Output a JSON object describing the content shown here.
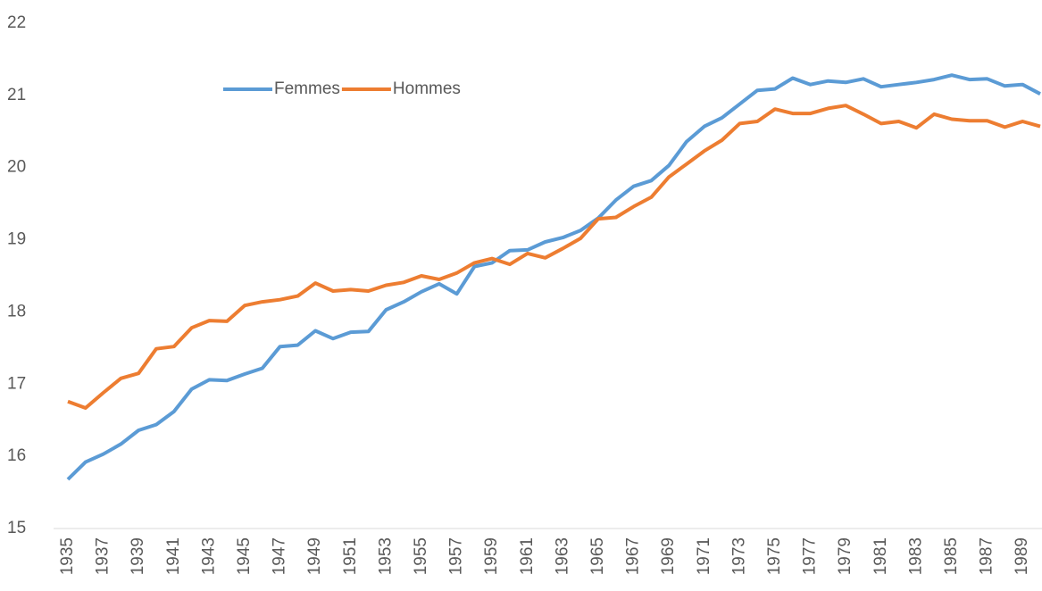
{
  "chart_data": {
    "type": "line",
    "categories": [
      "1935",
      null,
      "1937",
      null,
      "1939",
      null,
      "1941",
      null,
      "1943",
      null,
      "1945",
      null,
      "1947",
      null,
      "1949",
      null,
      "1951",
      null,
      "1953",
      null,
      "1955",
      null,
      "1957",
      null,
      "1959",
      null,
      "1961",
      null,
      "1963",
      null,
      "1965",
      null,
      "1967",
      null,
      "1969",
      null,
      "1971",
      null,
      "1973",
      null,
      "1975",
      null,
      "1977",
      null,
      "1979",
      null,
      "1981",
      null,
      "1983",
      null,
      "1985",
      null,
      "1987",
      null,
      "1989",
      null
    ],
    "series": [
      {
        "name": "Femmes",
        "color": "#5b9bd5",
        "values": [
          15.68,
          15.92,
          16.03,
          16.17,
          16.36,
          16.44,
          16.62,
          16.93,
          17.06,
          17.05,
          17.14,
          17.22,
          17.52,
          17.54,
          17.74,
          17.63,
          17.72,
          17.73,
          18.03,
          18.14,
          18.28,
          18.39,
          18.25,
          18.63,
          18.68,
          18.85,
          18.86,
          18.97,
          19.03,
          19.13,
          19.3,
          19.55,
          19.74,
          19.82,
          20.03,
          20.36,
          20.57,
          20.69,
          20.88,
          21.07,
          21.09,
          21.24,
          21.15,
          21.2,
          21.18,
          21.23,
          21.12,
          21.15,
          21.18,
          21.22,
          21.28,
          21.22,
          21.23,
          21.13,
          21.15,
          21.02
        ]
      },
      {
        "name": "Hommes",
        "color": "#ed7d31",
        "values": [
          16.76,
          16.67,
          16.88,
          17.08,
          17.15,
          17.49,
          17.52,
          17.78,
          17.88,
          17.87,
          18.09,
          18.14,
          18.17,
          18.22,
          18.4,
          18.29,
          18.31,
          18.29,
          18.37,
          18.41,
          18.5,
          18.45,
          18.54,
          18.68,
          18.74,
          18.66,
          18.81,
          18.75,
          18.88,
          19.02,
          19.29,
          19.31,
          19.46,
          19.59,
          19.87,
          20.05,
          20.23,
          20.38,
          20.61,
          20.64,
          20.81,
          20.75,
          20.75,
          20.82,
          20.86,
          20.74,
          20.61,
          20.64,
          20.55,
          20.74,
          20.67,
          20.65,
          20.65,
          20.56,
          20.64,
          20.57
        ]
      }
    ],
    "ylim": [
      15,
      22
    ],
    "yticks": [
      15,
      16,
      17,
      18,
      19,
      20,
      21,
      22
    ],
    "grid": false,
    "legend": "top"
  }
}
